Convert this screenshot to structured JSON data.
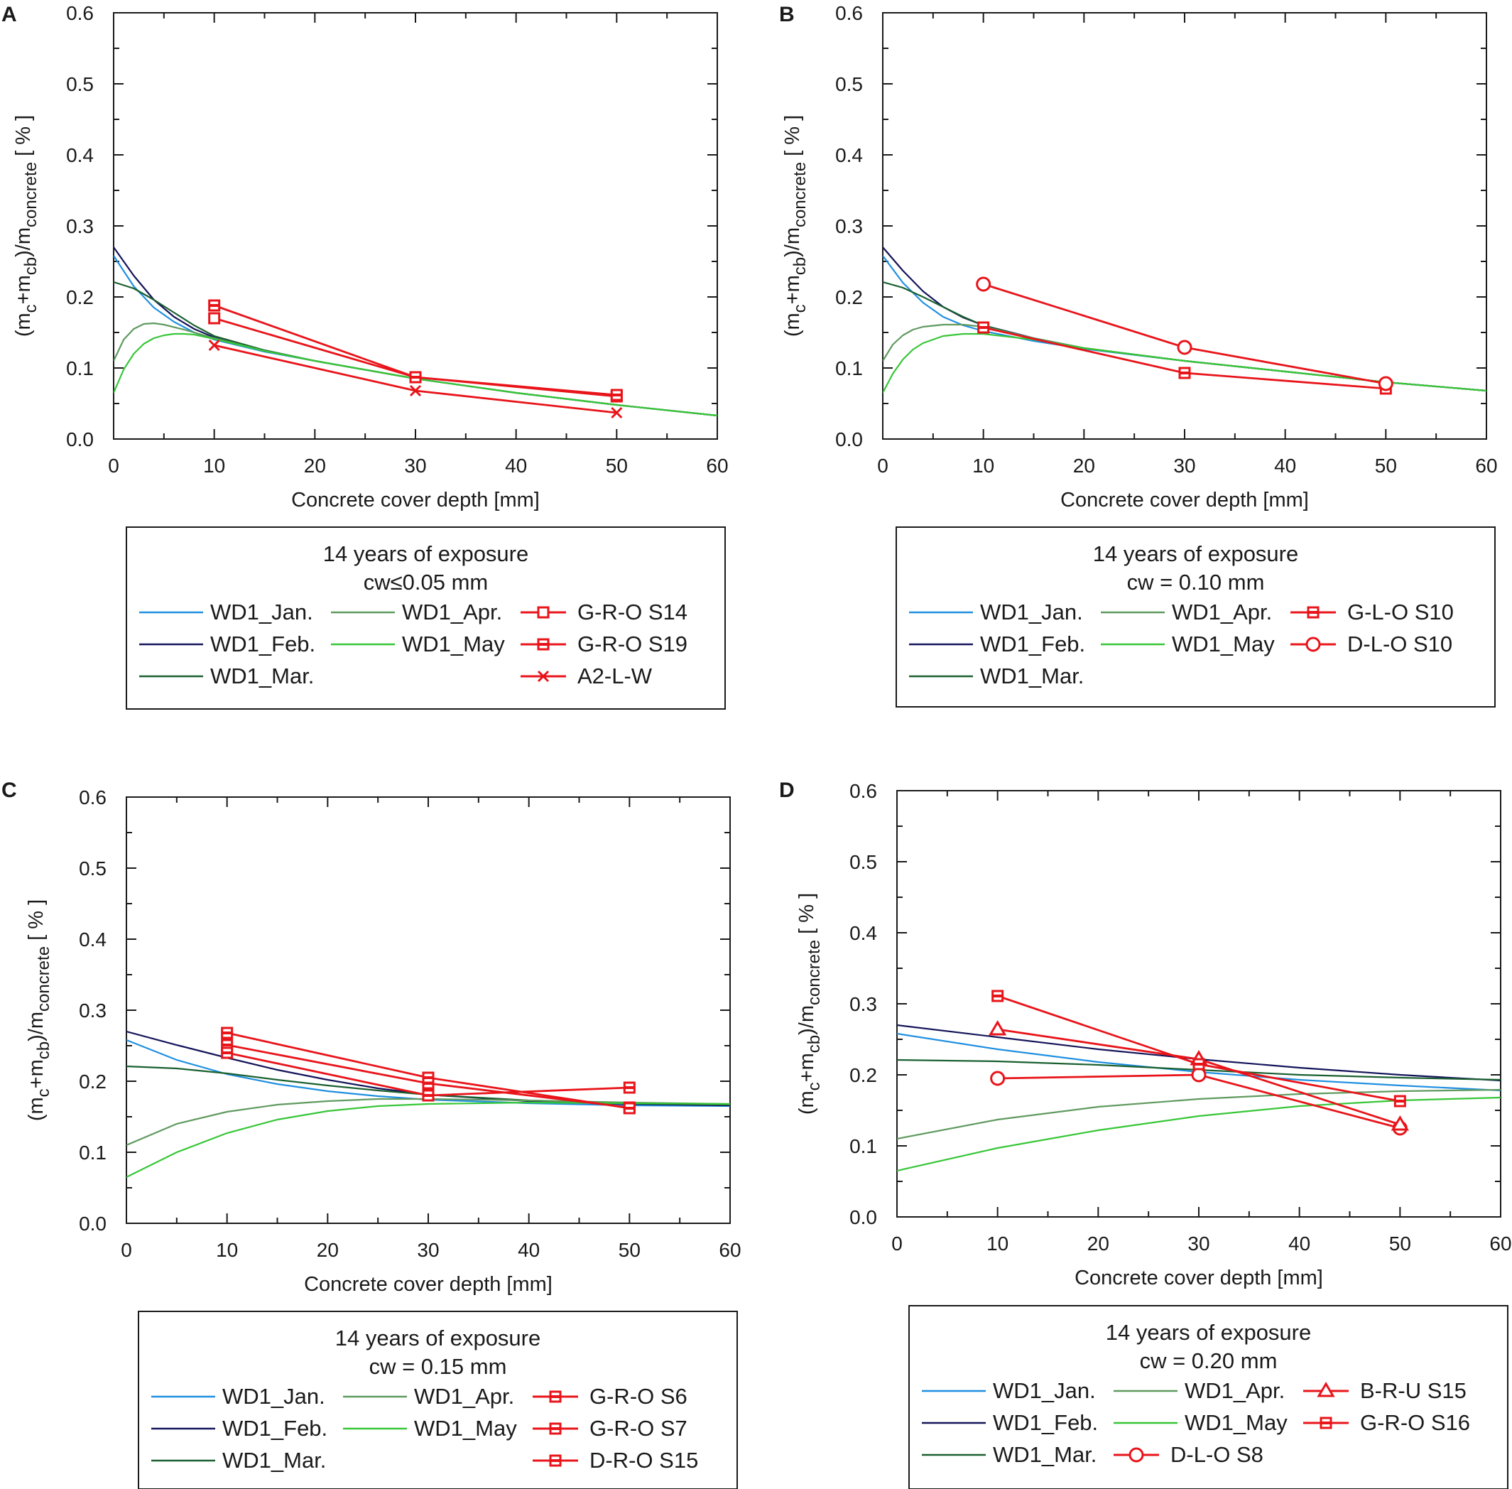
{
  "figure": {
    "axis_xlabel": "Concrete cover depth [mm]",
    "axis_ylabel": {
      "p1": "(m",
      "s1": "c",
      "p2": "+m",
      "s2": "cb",
      "p3": ")/m",
      "s3": "concrete",
      "p4": " [ % ]"
    },
    "xlim": [
      0,
      60
    ],
    "ylim": [
      0,
      0.6
    ],
    "xticks": [
      "0",
      "10",
      "20",
      "30",
      "40",
      "50",
      "60"
    ],
    "yticks": [
      "0.0",
      "0.1",
      "0.2",
      "0.3",
      "0.4",
      "0.5",
      "0.6"
    ],
    "colors": {
      "WD1_Jan.": "#1f8fe0",
      "WD1_Feb.": "#14145a",
      "WD1_Mar.": "#1a6030",
      "WD1_Apr.": "#5f9a5f",
      "WD1_May": "#37c637",
      "measured": "#e8141a",
      "frame": "#1a1a1a"
    }
  },
  "chart_data": [
    {
      "panel": "A",
      "type": "line",
      "legend_title": "14 years of exposure",
      "legend_subtitle": "cw≤0.05 mm",
      "xlabel": "Concrete cover depth [mm]",
      "ylabel": "(mc+mcb)/mconcrete [ % ]",
      "xlim": [
        0,
        60
      ],
      "ylim": [
        0,
        0.6
      ],
      "legend_columns": [
        [
          "WD1_Jan.",
          "WD1_Feb.",
          "WD1_Mar."
        ],
        [
          "WD1_Apr.",
          "WD1_May"
        ],
        [
          "G-R-O S14",
          "G-R-O S19",
          "A2-L-W"
        ]
      ],
      "series": [
        {
          "name": "WD1_Jan.",
          "kind": "model",
          "x": [
            0,
            2,
            4,
            6,
            8,
            10,
            15,
            20,
            30,
            40,
            50,
            60
          ],
          "values": [
            0.258,
            0.215,
            0.185,
            0.165,
            0.15,
            0.14,
            0.123,
            0.11,
            0.085,
            0.065,
            0.048,
            0.033
          ]
        },
        {
          "name": "WD1_Feb.",
          "kind": "model",
          "x": [
            0,
            2,
            4,
            6,
            8,
            10,
            15,
            20,
            30,
            40,
            50,
            60
          ],
          "values": [
            0.27,
            0.23,
            0.196,
            0.172,
            0.155,
            0.143,
            0.124,
            0.11,
            0.085,
            0.065,
            0.048,
            0.033
          ]
        },
        {
          "name": "WD1_Mar.",
          "kind": "model",
          "x": [
            0,
            2,
            4,
            6,
            8,
            10,
            15,
            20,
            30,
            40,
            50,
            60
          ],
          "values": [
            0.221,
            0.212,
            0.196,
            0.178,
            0.16,
            0.145,
            0.125,
            0.11,
            0.085,
            0.065,
            0.048,
            0.033
          ]
        },
        {
          "name": "WD1_Apr.",
          "kind": "model",
          "x": [
            0,
            1,
            2,
            3,
            4,
            5,
            7,
            10,
            15,
            20,
            30,
            40,
            50,
            60
          ],
          "values": [
            0.11,
            0.14,
            0.155,
            0.162,
            0.163,
            0.161,
            0.154,
            0.142,
            0.124,
            0.11,
            0.085,
            0.065,
            0.048,
            0.033
          ]
        },
        {
          "name": "WD1_May",
          "kind": "model",
          "x": [
            0,
            1,
            2,
            3,
            4,
            5,
            6,
            7,
            8,
            10,
            15,
            20,
            30,
            40,
            50,
            60
          ],
          "values": [
            0.065,
            0.098,
            0.12,
            0.134,
            0.142,
            0.146,
            0.148,
            0.148,
            0.147,
            0.141,
            0.124,
            0.11,
            0.085,
            0.065,
            0.048,
            0.033
          ]
        },
        {
          "name": "G-R-O S14",
          "kind": "measured",
          "marker": "square-open",
          "x": [
            10,
            30,
            50
          ],
          "values": [
            0.17,
            0.087,
            0.06
          ]
        },
        {
          "name": "G-R-O S19",
          "kind": "measured",
          "marker": "square-half",
          "x": [
            10,
            30,
            50
          ],
          "values": [
            0.188,
            0.087,
            0.062
          ]
        },
        {
          "name": "A2-L-W",
          "kind": "measured",
          "marker": "x",
          "x": [
            10,
            30,
            50
          ],
          "values": [
            0.132,
            0.068,
            0.037
          ]
        }
      ]
    },
    {
      "panel": "B",
      "type": "line",
      "legend_title": "14 years of exposure",
      "legend_subtitle": "cw = 0.10 mm",
      "xlabel": "Concrete cover depth [mm]",
      "ylabel": "(mc+mcb)/mconcrete [ % ]",
      "xlim": [
        0,
        60
      ],
      "ylim": [
        0,
        0.6
      ],
      "legend_columns": [
        [
          "WD1_Jan.",
          "WD1_Feb.",
          "WD1_Mar."
        ],
        [
          "WD1_Apr.",
          "WD1_May"
        ],
        [
          "G-L-O S10",
          "D-L-O S10"
        ]
      ],
      "series": [
        {
          "name": "WD1_Jan.",
          "kind": "model",
          "x": [
            0,
            2,
            4,
            6,
            8,
            10,
            15,
            20,
            30,
            40,
            50,
            60
          ],
          "values": [
            0.258,
            0.22,
            0.192,
            0.172,
            0.16,
            0.152,
            0.138,
            0.127,
            0.11,
            0.095,
            0.08,
            0.068
          ]
        },
        {
          "name": "WD1_Feb.",
          "kind": "model",
          "x": [
            0,
            2,
            4,
            6,
            8,
            10,
            15,
            20,
            30,
            40,
            50,
            60
          ],
          "values": [
            0.27,
            0.237,
            0.208,
            0.186,
            0.171,
            0.16,
            0.142,
            0.128,
            0.11,
            0.095,
            0.08,
            0.068
          ]
        },
        {
          "name": "WD1_Mar.",
          "kind": "model",
          "x": [
            0,
            2,
            4,
            6,
            8,
            10,
            15,
            20,
            30,
            40,
            50,
            60
          ],
          "values": [
            0.221,
            0.213,
            0.2,
            0.186,
            0.172,
            0.16,
            0.141,
            0.128,
            0.11,
            0.095,
            0.08,
            0.068
          ]
        },
        {
          "name": "WD1_Apr.",
          "kind": "model",
          "x": [
            0,
            1,
            2,
            3,
            4,
            6,
            8,
            10,
            15,
            20,
            30,
            40,
            50,
            60
          ],
          "values": [
            0.11,
            0.133,
            0.146,
            0.154,
            0.158,
            0.161,
            0.161,
            0.158,
            0.142,
            0.128,
            0.11,
            0.095,
            0.08,
            0.068
          ]
        },
        {
          "name": "WD1_May",
          "kind": "model",
          "x": [
            0,
            1,
            2,
            3,
            4,
            6,
            8,
            10,
            15,
            20,
            30,
            40,
            50,
            60
          ],
          "values": [
            0.065,
            0.092,
            0.112,
            0.126,
            0.135,
            0.145,
            0.148,
            0.148,
            0.14,
            0.128,
            0.11,
            0.095,
            0.08,
            0.068
          ]
        },
        {
          "name": "G-L-O S10",
          "kind": "measured",
          "marker": "square-half",
          "x": [
            10,
            30,
            50
          ],
          "values": [
            0.157,
            0.093,
            0.071
          ]
        },
        {
          "name": "D-L-O S10",
          "kind": "measured",
          "marker": "circle-open",
          "x": [
            10,
            30,
            50
          ],
          "values": [
            0.218,
            0.129,
            0.078
          ]
        }
      ]
    },
    {
      "panel": "C",
      "type": "line",
      "legend_title": "14 years of exposure",
      "legend_subtitle": "cw = 0.15 mm",
      "xlabel": "Concrete cover depth [mm]",
      "ylabel": "(mc+mcb)/mconcrete [ % ]",
      "xlim": [
        0,
        60
      ],
      "ylim": [
        0,
        0.6
      ],
      "legend_columns": [
        [
          "WD1_Jan.",
          "WD1_Feb.",
          "WD1_Mar."
        ],
        [
          "WD1_Apr.",
          "WD1_May"
        ],
        [
          "G-R-O S6",
          "G-R-O S7",
          "D-R-O S15"
        ]
      ],
      "series": [
        {
          "name": "WD1_Jan.",
          "kind": "model",
          "x": [
            0,
            5,
            10,
            15,
            20,
            25,
            30,
            40,
            50,
            60
          ],
          "values": [
            0.258,
            0.23,
            0.21,
            0.196,
            0.186,
            0.179,
            0.174,
            0.169,
            0.166,
            0.165
          ]
        },
        {
          "name": "WD1_Feb.",
          "kind": "model",
          "x": [
            0,
            5,
            10,
            15,
            20,
            25,
            30,
            40,
            50,
            60
          ],
          "values": [
            0.27,
            0.251,
            0.233,
            0.216,
            0.202,
            0.19,
            0.181,
            0.172,
            0.168,
            0.166
          ]
        },
        {
          "name": "WD1_Mar.",
          "kind": "model",
          "x": [
            0,
            5,
            10,
            15,
            20,
            25,
            30,
            40,
            50,
            60
          ],
          "values": [
            0.221,
            0.218,
            0.211,
            0.202,
            0.194,
            0.187,
            0.181,
            0.173,
            0.169,
            0.167
          ]
        },
        {
          "name": "WD1_Apr.",
          "kind": "model",
          "x": [
            0,
            5,
            10,
            15,
            20,
            25,
            30,
            40,
            50,
            60
          ],
          "values": [
            0.11,
            0.14,
            0.157,
            0.167,
            0.172,
            0.175,
            0.175,
            0.173,
            0.17,
            0.168
          ]
        },
        {
          "name": "WD1_May",
          "kind": "model",
          "x": [
            0,
            5,
            10,
            15,
            20,
            25,
            30,
            40,
            50,
            60
          ],
          "values": [
            0.065,
            0.1,
            0.127,
            0.146,
            0.158,
            0.165,
            0.168,
            0.17,
            0.169,
            0.168
          ]
        },
        {
          "name": "G-R-O S6",
          "kind": "measured",
          "marker": "square-half",
          "x": [
            10,
            30,
            50
          ],
          "values": [
            0.251,
            0.197,
            0.163
          ]
        },
        {
          "name": "G-R-O S7",
          "kind": "measured",
          "marker": "square-half",
          "x": [
            10,
            30,
            50
          ],
          "values": [
            0.268,
            0.205,
            0.162
          ]
        },
        {
          "name": "D-R-O S15",
          "kind": "measured",
          "marker": "square-half",
          "x": [
            10,
            30,
            50
          ],
          "values": [
            0.24,
            0.18,
            0.191
          ]
        }
      ]
    },
    {
      "panel": "D",
      "type": "line",
      "legend_title": "14 years of exposure",
      "legend_subtitle": "cw = 0.20 mm",
      "xlabel": "Concrete cover depth [mm]",
      "ylabel": "(mc+mcb)/mconcrete [ % ]",
      "xlim": [
        0,
        60
      ],
      "ylim": [
        0,
        0.6
      ],
      "legend_columns": [
        [
          "WD1_Jan.",
          "WD1_Feb.",
          "WD1_Mar."
        ],
        [
          "WD1_Apr.",
          "WD1_May",
          "D-L-O S8"
        ],
        [
          "B-R-U S15",
          "G-R-O S16"
        ]
      ],
      "series": [
        {
          "name": "WD1_Jan.",
          "kind": "model",
          "x": [
            0,
            10,
            20,
            30,
            40,
            50,
            60
          ],
          "values": [
            0.258,
            0.236,
            0.218,
            0.204,
            0.193,
            0.185,
            0.178
          ]
        },
        {
          "name": "WD1_Feb.",
          "kind": "model",
          "x": [
            0,
            10,
            20,
            30,
            40,
            50,
            60
          ],
          "values": [
            0.27,
            0.253,
            0.236,
            0.222,
            0.21,
            0.2,
            0.192
          ]
        },
        {
          "name": "WD1_Mar.",
          "kind": "model",
          "x": [
            0,
            10,
            20,
            30,
            40,
            50,
            60
          ],
          "values": [
            0.221,
            0.219,
            0.214,
            0.207,
            0.2,
            0.196,
            0.193
          ]
        },
        {
          "name": "WD1_Apr.",
          "kind": "model",
          "x": [
            0,
            10,
            20,
            30,
            40,
            50,
            60
          ],
          "values": [
            0.11,
            0.137,
            0.155,
            0.166,
            0.173,
            0.177,
            0.179
          ]
        },
        {
          "name": "WD1_May",
          "kind": "model",
          "x": [
            0,
            10,
            20,
            30,
            40,
            50,
            60
          ],
          "values": [
            0.065,
            0.097,
            0.122,
            0.142,
            0.156,
            0.164,
            0.168
          ]
        },
        {
          "name": "D-L-O S8",
          "kind": "measured",
          "marker": "circle-open",
          "x": [
            10,
            30,
            50
          ],
          "values": [
            0.195,
            0.2,
            0.125
          ]
        },
        {
          "name": "B-R-U S15",
          "kind": "measured",
          "marker": "triangle-open",
          "x": [
            10,
            30,
            50
          ],
          "values": [
            0.264,
            0.222,
            0.13
          ]
        },
        {
          "name": "G-R-O S16",
          "kind": "measured",
          "marker": "square-half",
          "x": [
            10,
            30,
            50
          ],
          "values": [
            0.311,
            0.215,
            0.163
          ]
        }
      ]
    }
  ]
}
